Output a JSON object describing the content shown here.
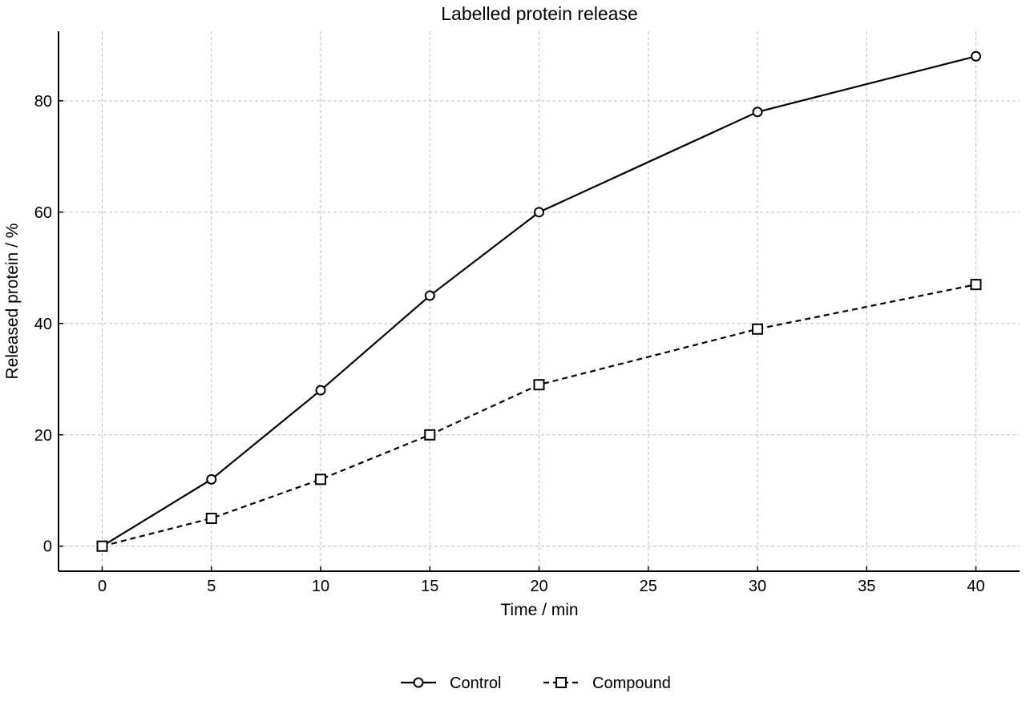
{
  "chart_data": {
    "type": "line",
    "title": "Labelled protein release",
    "xlabel": "Time / min",
    "ylabel": "Released protein / %",
    "xlim": [
      -2,
      42
    ],
    "ylim": [
      -4.5,
      92.5
    ],
    "xticks": [
      0,
      5,
      10,
      15,
      20,
      25,
      30,
      35,
      40
    ],
    "yticks": [
      0,
      20,
      40,
      60,
      80
    ],
    "grid": true,
    "legend_position": "bottom-center",
    "series": [
      {
        "name": "Control",
        "marker": "circle",
        "line_style": "solid",
        "color": "#000000",
        "x": [
          0,
          5,
          10,
          15,
          20,
          30,
          40
        ],
        "y": [
          0,
          12,
          28,
          45,
          60,
          78,
          88
        ]
      },
      {
        "name": "Compound",
        "marker": "square",
        "line_style": "dashed",
        "color": "#000000",
        "x": [
          0,
          5,
          10,
          15,
          20,
          30,
          40
        ],
        "y": [
          0,
          5,
          12,
          20,
          29,
          39,
          47
        ]
      }
    ]
  }
}
